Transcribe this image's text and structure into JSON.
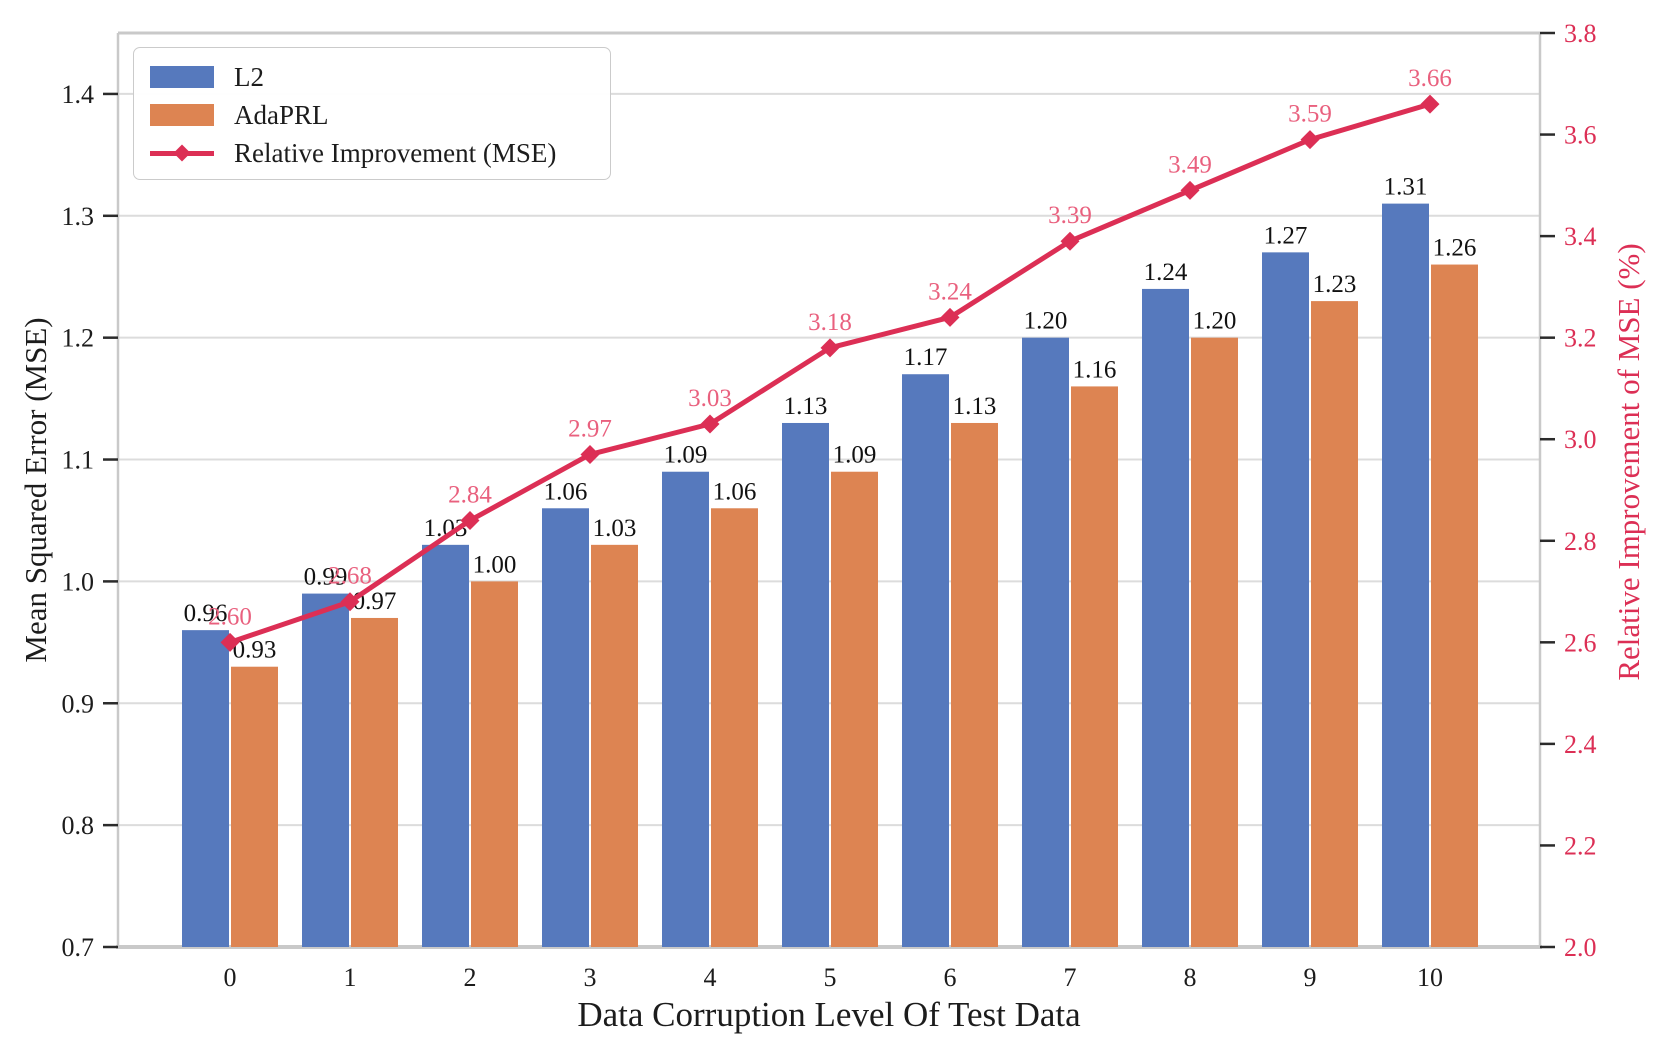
{
  "chart_data": {
    "type": "bar+line",
    "title": "",
    "categories": [
      "0",
      "1",
      "2",
      "3",
      "4",
      "5",
      "6",
      "7",
      "8",
      "9",
      "10"
    ],
    "series": [
      {
        "name": "L2",
        "type": "bar",
        "axis": "left",
        "color": "#5679BD",
        "values": [
          0.96,
          0.99,
          1.03,
          1.06,
          1.09,
          1.13,
          1.17,
          1.2,
          1.24,
          1.27,
          1.31
        ],
        "labels": [
          "0.96",
          "0.99",
          "1.03",
          "1.06",
          "1.09",
          "1.13",
          "1.17",
          "1.20",
          "1.24",
          "1.27",
          "1.31"
        ]
      },
      {
        "name": "AdaPRL",
        "type": "bar",
        "axis": "left",
        "color": "#DD8452",
        "values": [
          0.93,
          0.97,
          1.0,
          1.03,
          1.06,
          1.09,
          1.13,
          1.16,
          1.2,
          1.23,
          1.26
        ],
        "labels": [
          "0.93",
          "0.97",
          "1.00",
          "1.03",
          "1.06",
          "1.09",
          "1.13",
          "1.16",
          "1.20",
          "1.23",
          "1.26"
        ]
      },
      {
        "name": "Relative Improvement (MSE)",
        "type": "line",
        "axis": "right",
        "marker": "diamond",
        "color": "#DC2F55",
        "label_color": "#E9607E",
        "values": [
          2.6,
          2.68,
          2.84,
          2.97,
          3.03,
          3.18,
          3.24,
          3.39,
          3.49,
          3.59,
          3.66
        ],
        "labels": [
          "2.60",
          "2.68",
          "2.84",
          "2.97",
          "3.03",
          "3.18",
          "3.24",
          "3.39",
          "3.49",
          "3.59",
          "3.66"
        ]
      }
    ],
    "axes": {
      "x": {
        "label": "Data Corruption Level Of Test Data",
        "ticks": [
          "0",
          "1",
          "2",
          "3",
          "4",
          "5",
          "6",
          "7",
          "8",
          "9",
          "10"
        ]
      },
      "left": {
        "label": "Mean Squared Error (MSE)",
        "ticks": [
          "0.7",
          "0.8",
          "0.9",
          "1.0",
          "1.1",
          "1.2",
          "1.3",
          "1.4"
        ],
        "range": [
          0.7,
          1.45
        ],
        "color": "#1c1c1c"
      },
      "right": {
        "label": "Relative Improvement of MSE (%)",
        "ticks": [
          "2.0",
          "2.2",
          "2.4",
          "2.6",
          "2.8",
          "3.0",
          "3.2",
          "3.4",
          "3.6",
          "3.8"
        ],
        "range": [
          2.0,
          3.8
        ],
        "color": "#DC2F55"
      }
    },
    "grid": true,
    "legend_position": "upper left",
    "colors": {
      "grid": "#DCDCDC",
      "spine": "#C9C9C9",
      "tick": "#2b2b2b",
      "text": "#1c1c1c"
    }
  }
}
